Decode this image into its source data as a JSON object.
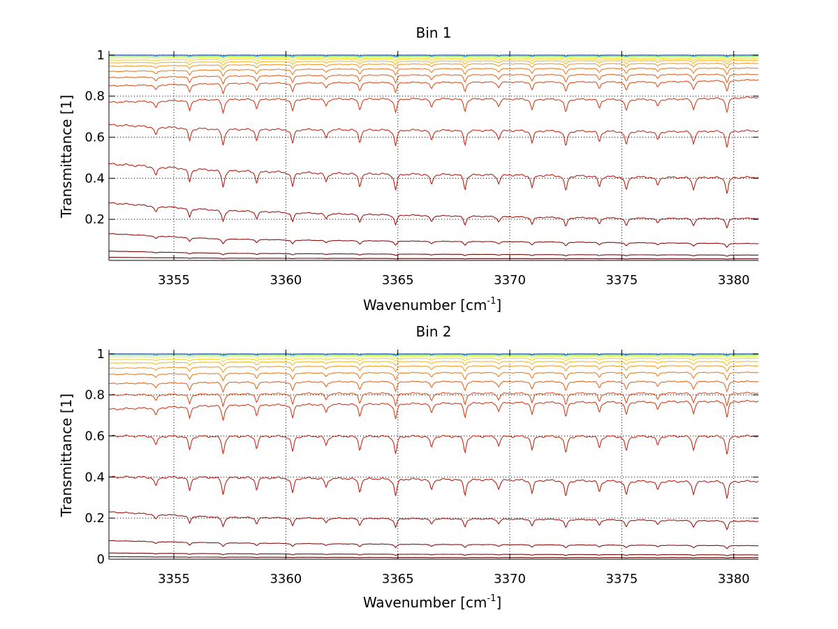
{
  "figure": {
    "background": "#ffffff"
  },
  "chart_data": [
    {
      "type": "line",
      "title": "Bin 1",
      "xlabel_main": "Wavenumber [cm",
      "xlabel_sup": "-1",
      "xlabel_end": "]",
      "ylabel": "Transmittance [1]",
      "xlim": [
        3352.1,
        3381.1
      ],
      "ylim": [
        0.0,
        1.02
      ],
      "xticks": [
        3355,
        3360,
        3365,
        3370,
        3375,
        3380
      ],
      "xtick_labels": [
        "3355",
        "3360",
        "3365",
        "3370",
        "3375",
        "3380"
      ],
      "yticks": [
        0.2,
        0.4,
        0.6,
        0.8,
        1.0
      ],
      "ytick_labels": [
        "0.2",
        "0.4",
        "0.6",
        "0.8",
        "1"
      ],
      "grid": true,
      "grid_style": "dotted",
      "line_color_scale": "jet (dark red = low transmittance, blue = near 1)",
      "absorption_lines": [
        3354.2,
        3355.7,
        3357.2,
        3358.7,
        3360.3,
        3361.8,
        3363.3,
        3364.9,
        3366.5,
        3368.0,
        3369.5,
        3371.0,
        3372.5,
        3374.0,
        3375.2,
        3376.6,
        3378.2,
        3379.7
      ],
      "series": [
        {
          "color": "#1f3fb8",
          "values": [
            1.0,
            1.0,
            1.0,
            1.0,
            1.0,
            1.0,
            1.0
          ]
        },
        {
          "color": "#3aa3e0",
          "values": [
            0.998,
            0.998,
            0.998,
            0.998,
            0.998,
            0.998,
            0.998
          ]
        },
        {
          "color": "#7fe08a",
          "values": [
            0.993,
            0.994,
            0.994,
            0.995,
            0.995,
            0.995,
            0.995
          ]
        },
        {
          "color": "#e8f040",
          "values": [
            0.985,
            0.988,
            0.989,
            0.99,
            0.99,
            0.99,
            0.99
          ]
        },
        {
          "color": "#f5d52a",
          "values": [
            0.975,
            0.979,
            0.981,
            0.982,
            0.982,
            0.982,
            0.983
          ]
        },
        {
          "color": "#f5b82a",
          "values": [
            0.962,
            0.967,
            0.97,
            0.971,
            0.972,
            0.973,
            0.974
          ]
        },
        {
          "color": "#f39a26",
          "values": [
            0.945,
            0.952,
            0.955,
            0.957,
            0.958,
            0.959,
            0.96
          ]
        },
        {
          "color": "#ec7d24",
          "values": [
            0.92,
            0.928,
            0.932,
            0.934,
            0.935,
            0.936,
            0.937
          ]
        },
        {
          "color": "#e56622",
          "values": [
            0.89,
            0.898,
            0.902,
            0.904,
            0.905,
            0.906,
            0.906
          ]
        },
        {
          "color": "#dc4f1e",
          "values": [
            0.85,
            0.862,
            0.866,
            0.868,
            0.87,
            0.87,
            0.88
          ]
        },
        {
          "color": "#d33a19",
          "values": [
            0.77,
            0.785,
            0.787,
            0.788,
            0.786,
            0.785,
            0.795
          ]
        },
        {
          "color": "#c62a14",
          "values": [
            0.66,
            0.64,
            0.638,
            0.635,
            0.632,
            0.628,
            0.632
          ]
        },
        {
          "color": "#b51e10",
          "values": [
            0.47,
            0.44,
            0.425,
            0.42,
            0.415,
            0.405,
            0.405
          ]
        },
        {
          "color": "#a0150c",
          "values": [
            0.28,
            0.245,
            0.228,
            0.218,
            0.21,
            0.205,
            0.205
          ]
        },
        {
          "color": "#8a0f09",
          "values": [
            0.13,
            0.105,
            0.097,
            0.093,
            0.09,
            0.085,
            0.082
          ]
        },
        {
          "color": "#730a06",
          "values": [
            0.045,
            0.035,
            0.032,
            0.03,
            0.028,
            0.027,
            0.026
          ]
        },
        {
          "color": "#5e0704",
          "values": [
            0.015,
            0.011,
            0.01,
            0.009,
            0.009,
            0.008,
            0.008
          ]
        }
      ],
      "series_x": [
        3352.1,
        3357,
        3362,
        3367,
        3372,
        3377,
        3381.1
      ]
    },
    {
      "type": "line",
      "title": "Bin 2",
      "xlabel_main": "Wavenumber [cm",
      "xlabel_sup": "-1",
      "xlabel_end": "]",
      "ylabel": "Transmittance [1]",
      "xlim": [
        3352.1,
        3381.1
      ],
      "ylim": [
        0.0,
        1.02
      ],
      "xticks": [
        3355,
        3360,
        3365,
        3370,
        3375,
        3380
      ],
      "xtick_labels": [
        "3355",
        "3360",
        "3365",
        "3370",
        "3375",
        "3380"
      ],
      "yticks": [
        0.0,
        0.2,
        0.4,
        0.6,
        0.8,
        1.0
      ],
      "ytick_labels": [
        "0",
        "0.2",
        "0.4",
        "0.6",
        "0.8",
        "1"
      ],
      "grid": true,
      "grid_style": "dotted",
      "line_color_scale": "jet (dark red = low transmittance, blue = near 1)",
      "absorption_lines": [
        3354.2,
        3355.7,
        3357.2,
        3358.7,
        3360.3,
        3361.8,
        3363.3,
        3364.9,
        3366.5,
        3368.0,
        3369.5,
        3371.0,
        3372.5,
        3374.0,
        3375.2,
        3376.6,
        3378.2,
        3379.7
      ],
      "series": [
        {
          "color": "#1f3fb8",
          "values": [
            1.0,
            1.0,
            1.0,
            1.0,
            1.0,
            1.0,
            1.0
          ]
        },
        {
          "color": "#3aa3e0",
          "values": [
            0.998,
            0.998,
            0.998,
            0.998,
            0.998,
            0.998,
            0.998
          ]
        },
        {
          "color": "#7fe08a",
          "values": [
            0.993,
            0.994,
            0.994,
            0.995,
            0.995,
            0.995,
            0.995
          ]
        },
        {
          "color": "#e8f040",
          "values": [
            0.984,
            0.986,
            0.987,
            0.988,
            0.988,
            0.988,
            0.988
          ]
        },
        {
          "color": "#f5d52a",
          "values": [
            0.972,
            0.975,
            0.977,
            0.978,
            0.978,
            0.978,
            0.978
          ]
        },
        {
          "color": "#f5b82a",
          "values": [
            0.955,
            0.96,
            0.962,
            0.963,
            0.963,
            0.963,
            0.963
          ]
        },
        {
          "color": "#f39a26",
          "values": [
            0.93,
            0.937,
            0.94,
            0.941,
            0.942,
            0.942,
            0.942
          ]
        },
        {
          "color": "#ec7d24",
          "values": [
            0.9,
            0.905,
            0.908,
            0.909,
            0.909,
            0.91,
            0.91
          ]
        },
        {
          "color": "#e56622",
          "values": [
            0.855,
            0.862,
            0.865,
            0.866,
            0.866,
            0.866,
            0.866
          ]
        },
        {
          "color": "#dc4f1e",
          "values": [
            0.8,
            0.805,
            0.808,
            0.809,
            0.809,
            0.809,
            0.81
          ]
        },
        {
          "color": "#d33a19",
          "values": [
            0.73,
            0.75,
            0.755,
            0.76,
            0.765,
            0.768,
            0.77
          ]
        },
        {
          "color": "#c62a14",
          "values": [
            0.6,
            0.6,
            0.6,
            0.6,
            0.6,
            0.6,
            0.6
          ]
        },
        {
          "color": "#b51e10",
          "values": [
            0.4,
            0.4,
            0.395,
            0.39,
            0.385,
            0.38,
            0.38
          ]
        },
        {
          "color": "#a0150c",
          "values": [
            0.23,
            0.205,
            0.2,
            0.198,
            0.195,
            0.19,
            0.185
          ]
        },
        {
          "color": "#8a0f09",
          "values": [
            0.09,
            0.08,
            0.075,
            0.072,
            0.07,
            0.068,
            0.066
          ]
        },
        {
          "color": "#730a06",
          "values": [
            0.03,
            0.027,
            0.025,
            0.024,
            0.023,
            0.022,
            0.021
          ]
        },
        {
          "color": "#5e0704",
          "values": [
            0.012,
            0.01,
            0.009,
            0.008,
            0.008,
            0.008,
            0.008
          ]
        }
      ],
      "series_x": [
        3352.1,
        3357,
        3362,
        3367,
        3372,
        3377,
        3381.1
      ]
    }
  ]
}
